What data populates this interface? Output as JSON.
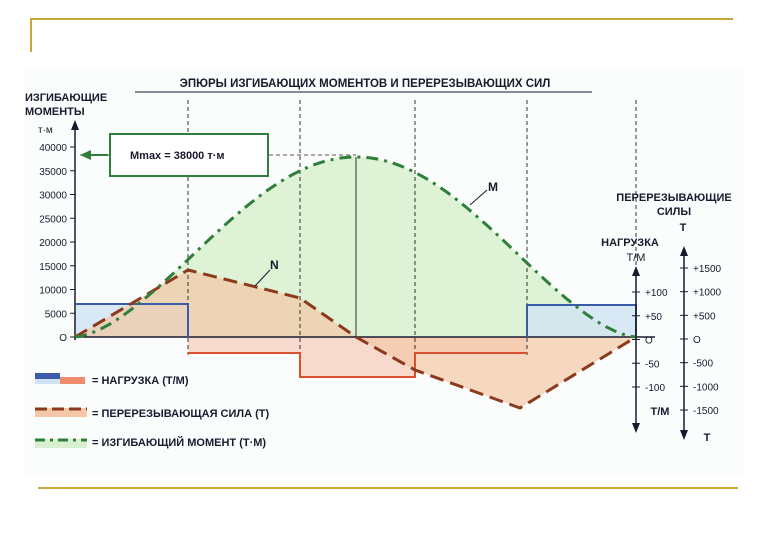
{
  "title": "ЭПЮРЫ ИЗГИБАЮЩИХ МОМЕНТОВ И ПЕРЕРЕЗЫВАЮЩИХ СИЛ",
  "left_axis": {
    "title_line1": "ИЗГИБАЮЩИЕ",
    "title_line2": "МОМЕНТЫ",
    "unit": "т·м",
    "ticks": [
      "40000",
      "35000",
      "30000",
      "25000",
      "20000",
      "15000",
      "10000",
      "5000",
      "O"
    ]
  },
  "mmax_label": "Mmax = 38000 т·м",
  "curve_labels": {
    "moment": "M",
    "shear": "N"
  },
  "shear_axis": {
    "title_line1": "ПЕРЕРЕЗЫВАЮЩИЕ",
    "title_line2": "СИЛЫ",
    "unit": "Т",
    "ticks": [
      "+1500",
      "+1000",
      "+500",
      "O",
      "-500",
      "-1000",
      "-1500"
    ],
    "bottom_unit": "Т"
  },
  "load_axis": {
    "title_line1": "НАГРУЗКА",
    "title_line2": "Т/М",
    "ticks": [
      "+100",
      "+50",
      "O",
      "-50",
      "-100"
    ],
    "bottom_unit": "Т/М"
  },
  "legend": [
    {
      "name": "load",
      "text": "= НАГРУЗКА  (Т/М)"
    },
    {
      "name": "shear",
      "text": "= ПЕРЕРЕЗЫВАЮЩАЯ СИЛА (Т)"
    },
    {
      "name": "moment",
      "text": "= ИЗГИБАЮЩИЙ МОМЕНТ (Т·М)"
    }
  ],
  "colors": {
    "load_line": "#3b5ba8",
    "load_fill_pos": "#cfe3f2",
    "load_fill_neg": "#f6d0c2",
    "load_neg_line": "#d9502e",
    "shear_line": "#8b3a1e",
    "shear_fill": "#f4c7a6",
    "moment_line": "#2f7f3a",
    "moment_fill": "#d8f0cf",
    "axis": "#1a1a2e"
  }
}
